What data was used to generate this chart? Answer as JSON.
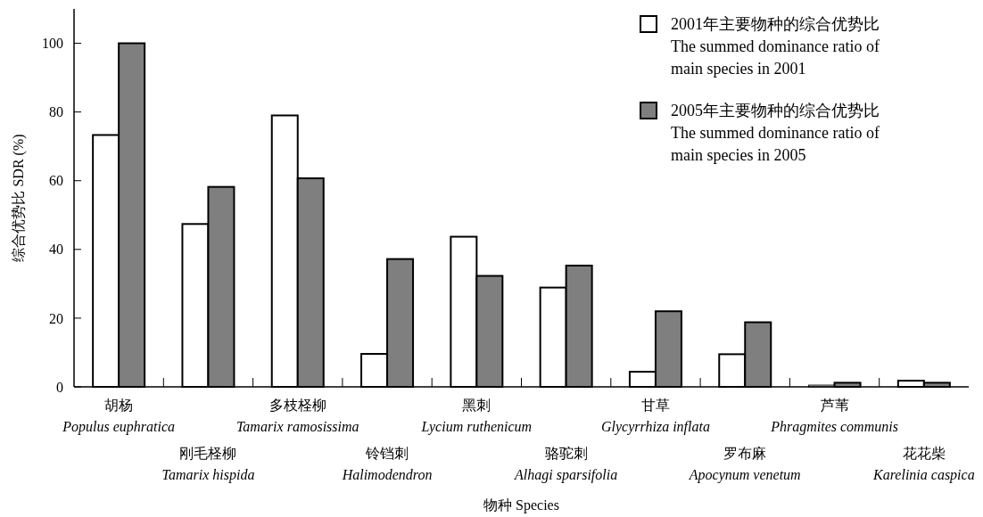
{
  "chart_data": {
    "type": "bar",
    "xlabel": "物种 Species",
    "ylabel": "综合优势比 SDR (%)",
    "categories": [
      "胡杨 Populus euphratica",
      "刚毛柽柳 Tamarix hispida",
      "多枝柽柳 Tamarix ramosissima",
      "铃铛刺 Halimodendron",
      "黑刺 Lycium ruthenicum",
      "骆驼刺 Alhagi sparsifolia",
      "甘草 Glycyrrhiza inflata",
      "罗布麻 Apocynum venetum",
      "芦苇 Phragmites communis",
      "花花柴 Karelinia caspica"
    ],
    "series": [
      {
        "name": "2001年主要物种的综合优势比 The summed dominance ratio of main species in 2001",
        "color": "#ffffff",
        "values": [
          73.3,
          47.4,
          79.0,
          9.6,
          43.7,
          28.9,
          4.4,
          9.5,
          0.5,
          1.8
        ]
      },
      {
        "name": "2005年主要物种的综合优势比 The summed dominance ratio of main species in 2005",
        "color": "#7f7f7f",
        "values": [
          100,
          58.2,
          60.7,
          37.2,
          32.3,
          35.3,
          22.0,
          18.8,
          1.2,
          1.2
        ]
      }
    ],
    "ylim": [
      0,
      110
    ],
    "yticks": [
      0,
      20,
      40,
      60,
      80,
      100
    ],
    "grid": false,
    "legend": "top right"
  }
}
